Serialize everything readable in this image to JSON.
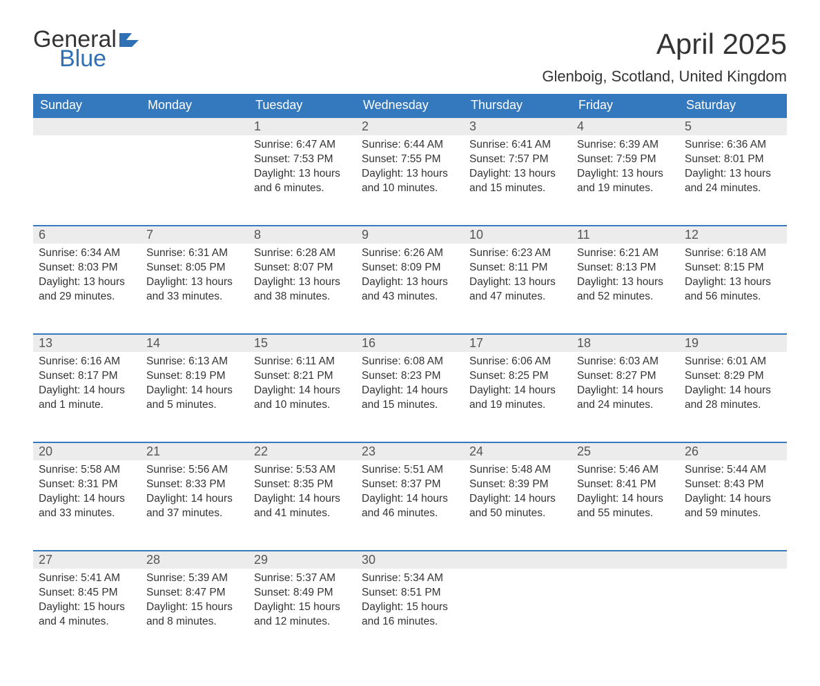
{
  "logo": {
    "line1": "General",
    "line2": "Blue",
    "shape_color": "#2f6fb3",
    "text_color_dark": "#333333",
    "text_color_blue": "#2f6fb3"
  },
  "title": "April 2025",
  "location": "Glenboig, Scotland, United Kingdom",
  "colors": {
    "header_bg": "#3478bd",
    "header_text": "#ffffff",
    "daynum_bg": "#ececec",
    "daynum_border": "#3478bd",
    "body_text": "#333333",
    "background": "#ffffff"
  },
  "typography": {
    "title_fontsize": 42,
    "location_fontsize": 22,
    "header_fontsize": 18,
    "daynum_fontsize": 18,
    "cell_fontsize": 15.5
  },
  "weekdays": [
    "Sunday",
    "Monday",
    "Tuesday",
    "Wednesday",
    "Thursday",
    "Friday",
    "Saturday"
  ],
  "weeks": [
    [
      null,
      null,
      {
        "n": "1",
        "sunrise": "6:47 AM",
        "sunset": "7:53 PM",
        "daylight": "13 hours and 6 minutes."
      },
      {
        "n": "2",
        "sunrise": "6:44 AM",
        "sunset": "7:55 PM",
        "daylight": "13 hours and 10 minutes."
      },
      {
        "n": "3",
        "sunrise": "6:41 AM",
        "sunset": "7:57 PM",
        "daylight": "13 hours and 15 minutes."
      },
      {
        "n": "4",
        "sunrise": "6:39 AM",
        "sunset": "7:59 PM",
        "daylight": "13 hours and 19 minutes."
      },
      {
        "n": "5",
        "sunrise": "6:36 AM",
        "sunset": "8:01 PM",
        "daylight": "13 hours and 24 minutes."
      }
    ],
    [
      {
        "n": "6",
        "sunrise": "6:34 AM",
        "sunset": "8:03 PM",
        "daylight": "13 hours and 29 minutes."
      },
      {
        "n": "7",
        "sunrise": "6:31 AM",
        "sunset": "8:05 PM",
        "daylight": "13 hours and 33 minutes."
      },
      {
        "n": "8",
        "sunrise": "6:28 AM",
        "sunset": "8:07 PM",
        "daylight": "13 hours and 38 minutes."
      },
      {
        "n": "9",
        "sunrise": "6:26 AM",
        "sunset": "8:09 PM",
        "daylight": "13 hours and 43 minutes."
      },
      {
        "n": "10",
        "sunrise": "6:23 AM",
        "sunset": "8:11 PM",
        "daylight": "13 hours and 47 minutes."
      },
      {
        "n": "11",
        "sunrise": "6:21 AM",
        "sunset": "8:13 PM",
        "daylight": "13 hours and 52 minutes."
      },
      {
        "n": "12",
        "sunrise": "6:18 AM",
        "sunset": "8:15 PM",
        "daylight": "13 hours and 56 minutes."
      }
    ],
    [
      {
        "n": "13",
        "sunrise": "6:16 AM",
        "sunset": "8:17 PM",
        "daylight": "14 hours and 1 minute."
      },
      {
        "n": "14",
        "sunrise": "6:13 AM",
        "sunset": "8:19 PM",
        "daylight": "14 hours and 5 minutes."
      },
      {
        "n": "15",
        "sunrise": "6:11 AM",
        "sunset": "8:21 PM",
        "daylight": "14 hours and 10 minutes."
      },
      {
        "n": "16",
        "sunrise": "6:08 AM",
        "sunset": "8:23 PM",
        "daylight": "14 hours and 15 minutes."
      },
      {
        "n": "17",
        "sunrise": "6:06 AM",
        "sunset": "8:25 PM",
        "daylight": "14 hours and 19 minutes."
      },
      {
        "n": "18",
        "sunrise": "6:03 AM",
        "sunset": "8:27 PM",
        "daylight": "14 hours and 24 minutes."
      },
      {
        "n": "19",
        "sunrise": "6:01 AM",
        "sunset": "8:29 PM",
        "daylight": "14 hours and 28 minutes."
      }
    ],
    [
      {
        "n": "20",
        "sunrise": "5:58 AM",
        "sunset": "8:31 PM",
        "daylight": "14 hours and 33 minutes."
      },
      {
        "n": "21",
        "sunrise": "5:56 AM",
        "sunset": "8:33 PM",
        "daylight": "14 hours and 37 minutes."
      },
      {
        "n": "22",
        "sunrise": "5:53 AM",
        "sunset": "8:35 PM",
        "daylight": "14 hours and 41 minutes."
      },
      {
        "n": "23",
        "sunrise": "5:51 AM",
        "sunset": "8:37 PM",
        "daylight": "14 hours and 46 minutes."
      },
      {
        "n": "24",
        "sunrise": "5:48 AM",
        "sunset": "8:39 PM",
        "daylight": "14 hours and 50 minutes."
      },
      {
        "n": "25",
        "sunrise": "5:46 AM",
        "sunset": "8:41 PM",
        "daylight": "14 hours and 55 minutes."
      },
      {
        "n": "26",
        "sunrise": "5:44 AM",
        "sunset": "8:43 PM",
        "daylight": "14 hours and 59 minutes."
      }
    ],
    [
      {
        "n": "27",
        "sunrise": "5:41 AM",
        "sunset": "8:45 PM",
        "daylight": "15 hours and 4 minutes."
      },
      {
        "n": "28",
        "sunrise": "5:39 AM",
        "sunset": "8:47 PM",
        "daylight": "15 hours and 8 minutes."
      },
      {
        "n": "29",
        "sunrise": "5:37 AM",
        "sunset": "8:49 PM",
        "daylight": "15 hours and 12 minutes."
      },
      {
        "n": "30",
        "sunrise": "5:34 AM",
        "sunset": "8:51 PM",
        "daylight": "15 hours and 16 minutes."
      },
      null,
      null,
      null
    ]
  ],
  "labels": {
    "sunrise": "Sunrise: ",
    "sunset": "Sunset: ",
    "daylight": "Daylight: "
  }
}
